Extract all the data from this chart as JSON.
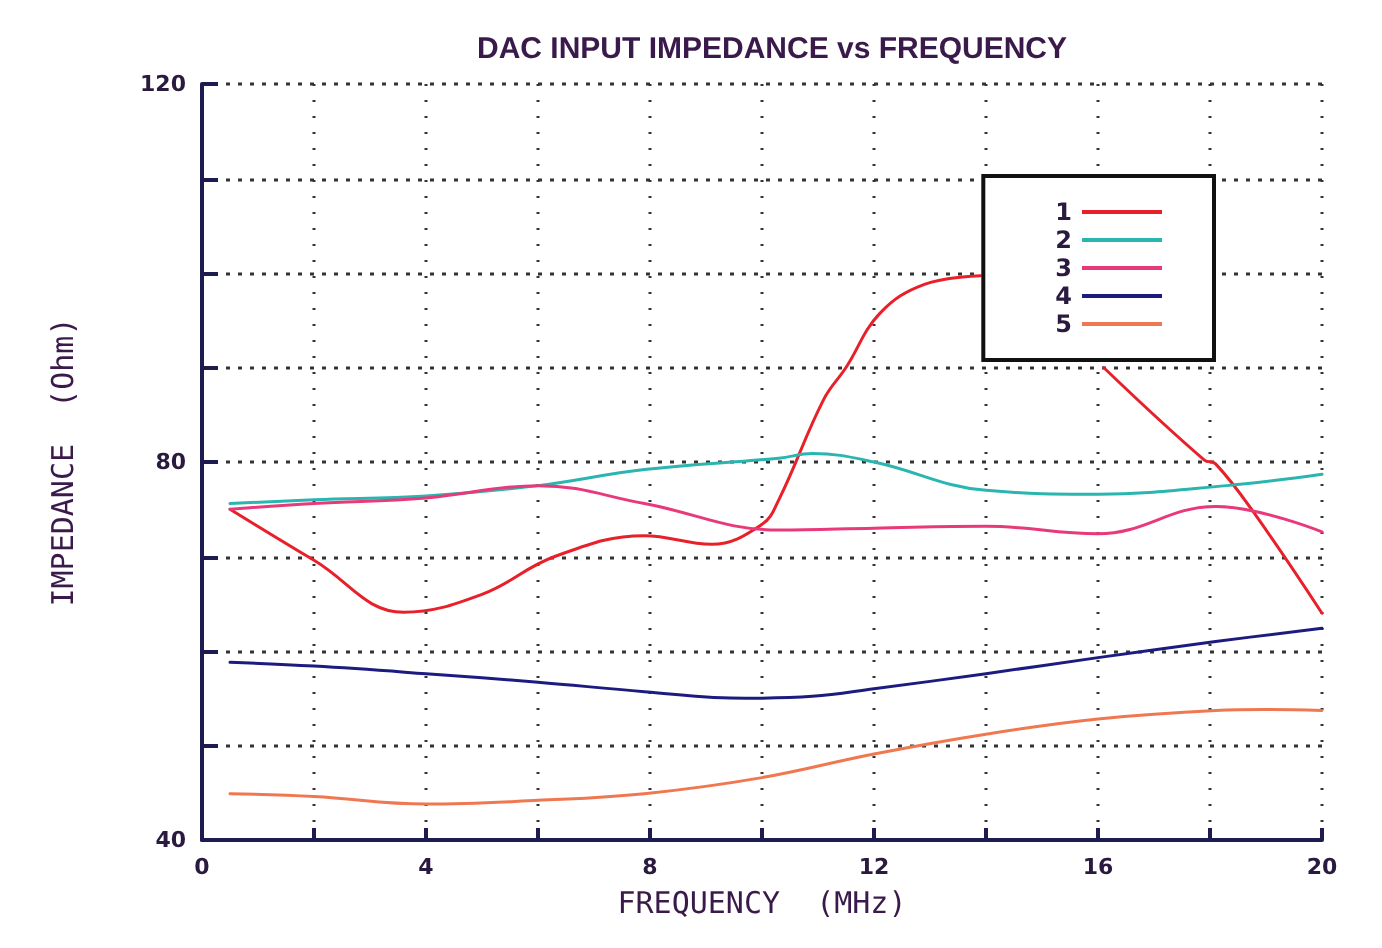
{
  "chart_data": {
    "type": "line",
    "title": "DAC INPUT IMPEDANCE vs FREQUENCY",
    "xlabel": "FREQUENCY  (MHz)",
    "ylabel": "IMPEDANCE  (Ohm)",
    "series": [
      {
        "name": "1",
        "color": "#e8202a",
        "x": [
          0.5,
          2,
          3.6,
          5,
          6.3,
          7.9,
          9.1,
          10,
          10.3,
          11.1,
          11.5,
          12.1,
          12.9,
          13.9,
          15,
          16.1,
          17.9,
          18.1,
          18.8,
          20
        ],
        "values": [
          75,
          69.6,
          64.1,
          66,
          70,
          72.2,
          71.3,
          73.4,
          76,
          86.6,
          90,
          95.7,
          98.8,
          99.7,
          null,
          90,
          80.2,
          79.8,
          74.5,
          64
        ]
      },
      {
        "name": "2",
        "color": "#2ab5b0",
        "x": [
          0.5,
          2,
          4,
          6,
          7.9,
          10.3,
          10.9,
          12,
          14,
          16,
          18.3,
          20
        ],
        "values": [
          75.6,
          76,
          76.4,
          77.5,
          79.2,
          80.4,
          80.9,
          80,
          77,
          76.6,
          77.5,
          78.7
        ]
      },
      {
        "name": "3",
        "color": "#e83a7a",
        "x": [
          0.5,
          2,
          4,
          6,
          7.9,
          10.3,
          12,
          14,
          16,
          18.1,
          20
        ],
        "values": [
          75,
          75.6,
          76.2,
          77.5,
          75.6,
          72.8,
          73,
          73.2,
          72.4,
          75.3,
          72.6
        ]
      },
      {
        "name": "4",
        "color": "#1c1c80",
        "x": [
          0.5,
          2,
          4,
          6,
          7.9,
          9.7,
          10.9,
          12,
          14,
          16,
          18.1,
          20
        ],
        "values": [
          58.8,
          58.4,
          57.6,
          56.7,
          55.7,
          55,
          55.2,
          56,
          57.6,
          59.3,
          61,
          62.4
        ]
      },
      {
        "name": "5",
        "color": "#f07850",
        "x": [
          0.5,
          2,
          4,
          6,
          7.9,
          10,
          12,
          14,
          16,
          18.1,
          19,
          20
        ],
        "values": [
          44.9,
          44.6,
          43.8,
          44.2,
          44.9,
          46.6,
          49.1,
          51.2,
          52.8,
          53.7,
          53.8,
          53.7
        ]
      }
    ],
    "xlim": [
      0,
      20
    ],
    "xticks": [
      0,
      {
        "value": 2,
        "label": null
      },
      4,
      {
        "value": 6,
        "label": null
      },
      8,
      {
        "value": 10,
        "label": null
      },
      12,
      {
        "value": 14,
        "label": null
      },
      16,
      {
        "value": 18,
        "label": null
      },
      20
    ],
    "ylim": [
      40,
      120
    ],
    "yticks": [
      40,
      {
        "value": 50,
        "label": null
      },
      {
        "value": 60,
        "label": null
      },
      {
        "value": 70,
        "label": null
      },
      80,
      {
        "value": 90,
        "label": null
      },
      {
        "value": 100,
        "label": null
      },
      {
        "value": 110,
        "label": null
      },
      120
    ],
    "grid": true,
    "legend": "top right",
    "marker": "none",
    "line_style": "solid"
  }
}
